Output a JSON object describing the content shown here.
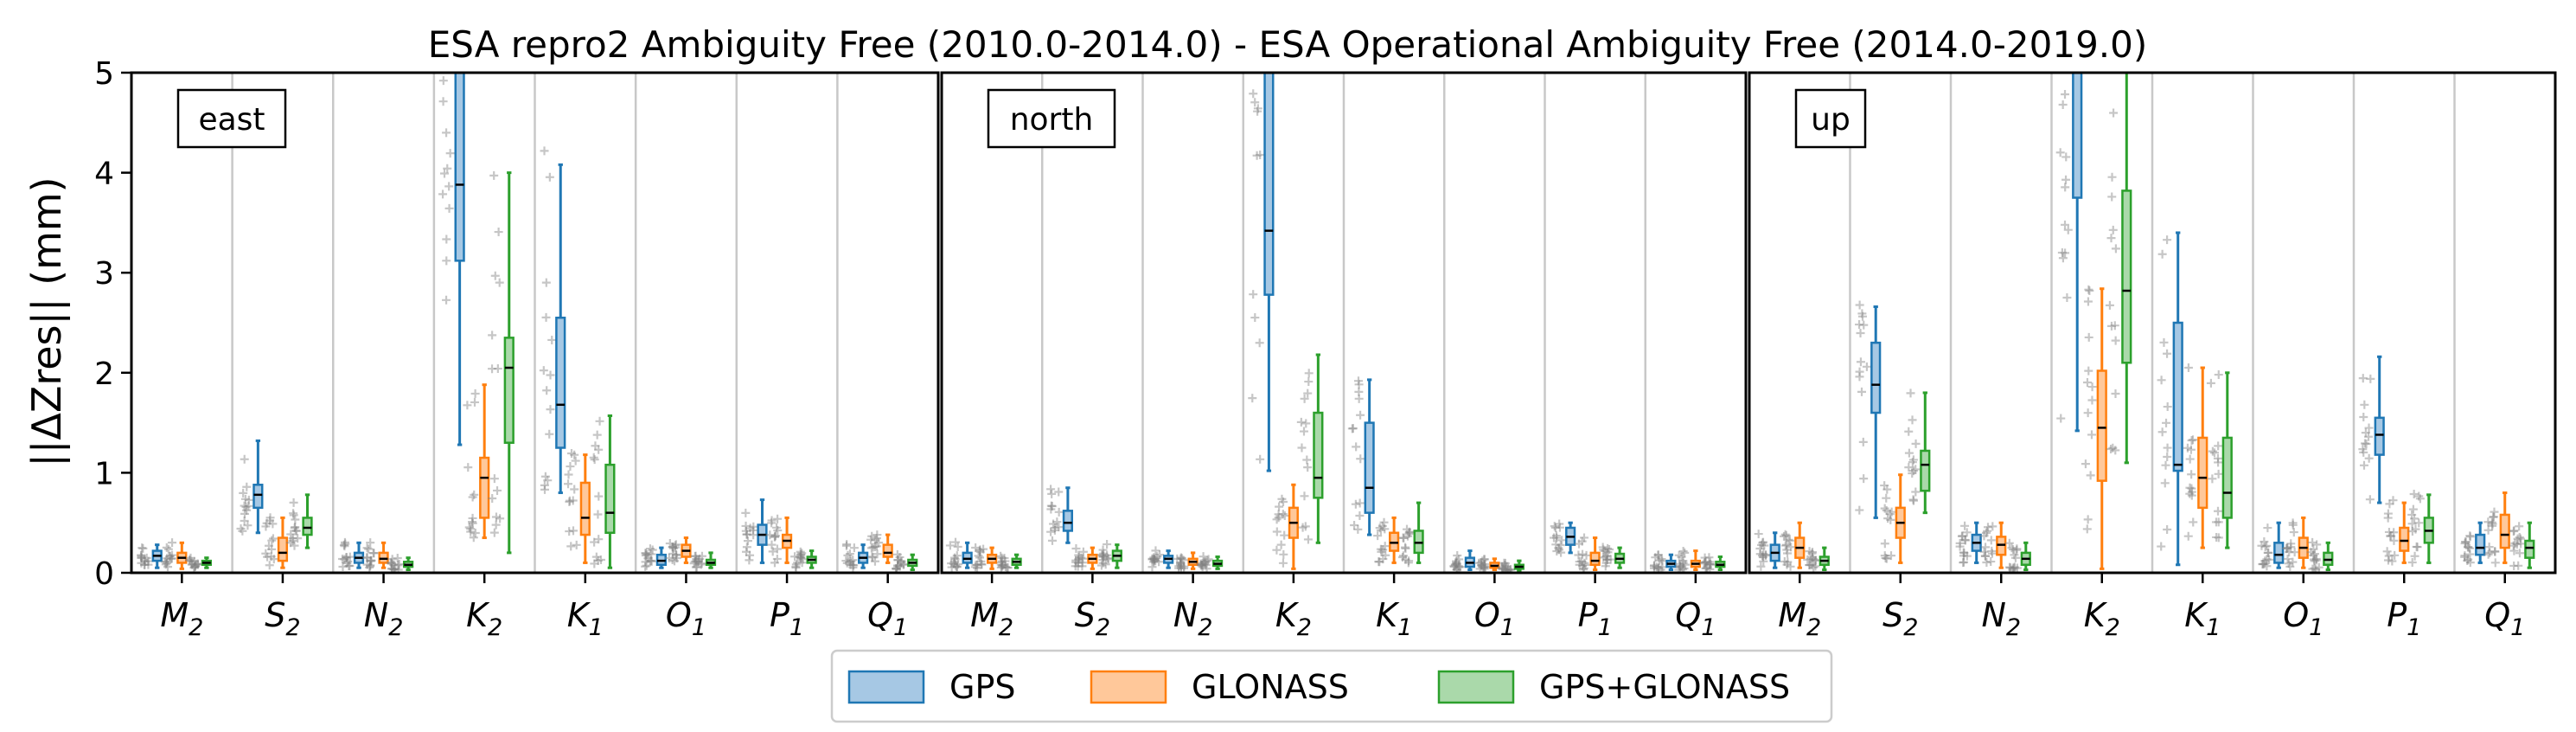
{
  "chart_data": {
    "type": "box",
    "title": "ESA repro2 Ambiguity Free (2010.0-2014.0) - ESA Operational Ambiguity Free (2014.0-2019.0)",
    "ylabel": "||ΔZres|| (mm)",
    "ylim": [
      0,
      5
    ],
    "yticks": [
      "0",
      "1",
      "2",
      "3",
      "4",
      "5"
    ],
    "grid": "vertical gridlines between tidal constituents",
    "legend_placement": "bottom-center",
    "categories": [
      {
        "base": "M",
        "sub": "2"
      },
      {
        "base": "S",
        "sub": "2"
      },
      {
        "base": "N",
        "sub": "2"
      },
      {
        "base": "K",
        "sub": "2"
      },
      {
        "base": "K",
        "sub": "1"
      },
      {
        "base": "O",
        "sub": "1"
      },
      {
        "base": "P",
        "sub": "1"
      },
      {
        "base": "Q",
        "sub": "1"
      }
    ],
    "series": [
      {
        "name": "GPS",
        "color": "#1f77b4",
        "fill": "#a6c8e4"
      },
      {
        "name": "GLONASS",
        "color": "#ff7f0e",
        "fill": "#ffc89a"
      },
      {
        "name": "GPS+GLONASS",
        "color": "#2ca02c",
        "fill": "#aad9aa"
      }
    ],
    "scatter_color": "#808080",
    "panels": [
      {
        "label": "east",
        "boxes": [
          [
            [
              0.05,
              0.12,
              0.17,
              0.22,
              0.28
            ],
            [
              0.04,
              0.1,
              0.15,
              0.2,
              0.3
            ],
            [
              0.05,
              0.08,
              0.1,
              0.12,
              0.15
            ]
          ],
          [
            [
              0.4,
              0.65,
              0.78,
              0.88,
              1.32
            ],
            [
              0.05,
              0.12,
              0.2,
              0.35,
              0.55
            ],
            [
              0.25,
              0.38,
              0.45,
              0.55,
              0.78
            ]
          ],
          [
            [
              0.05,
              0.1,
              0.15,
              0.2,
              0.3
            ],
            [
              0.05,
              0.1,
              0.14,
              0.2,
              0.3
            ],
            [
              0.03,
              0.06,
              0.08,
              0.11,
              0.15
            ]
          ],
          [
            [
              1.28,
              3.12,
              3.88,
              5.2,
              5.2
            ],
            [
              0.35,
              0.55,
              0.95,
              1.15,
              1.88
            ],
            [
              0.2,
              1.3,
              2.05,
              2.35,
              4.0
            ]
          ],
          [
            [
              0.8,
              1.25,
              1.68,
              2.55,
              4.08
            ],
            [
              0.1,
              0.38,
              0.55,
              0.9,
              1.18
            ],
            [
              0.05,
              0.4,
              0.6,
              1.08,
              1.57
            ]
          ],
          [
            [
              0.05,
              0.08,
              0.12,
              0.18,
              0.25
            ],
            [
              0.1,
              0.16,
              0.22,
              0.28,
              0.35
            ],
            [
              0.05,
              0.08,
              0.1,
              0.13,
              0.2
            ]
          ],
          [
            [
              0.1,
              0.28,
              0.38,
              0.48,
              0.73
            ],
            [
              0.1,
              0.25,
              0.32,
              0.38,
              0.55
            ],
            [
              0.05,
              0.1,
              0.13,
              0.16,
              0.22
            ]
          ],
          [
            [
              0.05,
              0.1,
              0.15,
              0.2,
              0.28
            ],
            [
              0.1,
              0.16,
              0.2,
              0.28,
              0.38
            ],
            [
              0.03,
              0.07,
              0.1,
              0.13,
              0.18
            ]
          ]
        ]
      },
      {
        "label": "north",
        "boxes": [
          [
            [
              0.05,
              0.1,
              0.14,
              0.2,
              0.3
            ],
            [
              0.04,
              0.1,
              0.14,
              0.18,
              0.25
            ],
            [
              0.05,
              0.08,
              0.11,
              0.14,
              0.18
            ]
          ],
          [
            [
              0.3,
              0.42,
              0.5,
              0.62,
              0.85
            ],
            [
              0.04,
              0.1,
              0.14,
              0.18,
              0.25
            ],
            [
              0.05,
              0.12,
              0.17,
              0.22,
              0.28
            ]
          ],
          [
            [
              0.05,
              0.1,
              0.14,
              0.17,
              0.22
            ],
            [
              0.04,
              0.08,
              0.11,
              0.14,
              0.2
            ],
            [
              0.04,
              0.07,
              0.09,
              0.12,
              0.16
            ]
          ],
          [
            [
              1.02,
              2.78,
              3.42,
              5.2,
              5.2
            ],
            [
              0.04,
              0.35,
              0.5,
              0.65,
              0.88
            ],
            [
              0.3,
              0.75,
              0.95,
              1.6,
              2.18
            ]
          ],
          [
            [
              0.38,
              0.6,
              0.85,
              1.5,
              1.93
            ],
            [
              0.1,
              0.22,
              0.3,
              0.4,
              0.55
            ],
            [
              0.1,
              0.2,
              0.3,
              0.42,
              0.7
            ]
          ],
          [
            [
              0.03,
              0.06,
              0.1,
              0.15,
              0.22
            ],
            [
              0.03,
              0.05,
              0.07,
              0.1,
              0.14
            ],
            [
              0.02,
              0.04,
              0.06,
              0.08,
              0.12
            ]
          ],
          [
            [
              0.2,
              0.28,
              0.36,
              0.45,
              0.5
            ],
            [
              0.03,
              0.08,
              0.12,
              0.2,
              0.35
            ],
            [
              0.05,
              0.1,
              0.14,
              0.19,
              0.25
            ]
          ],
          [
            [
              0.03,
              0.06,
              0.09,
              0.12,
              0.18
            ],
            [
              0.03,
              0.06,
              0.09,
              0.12,
              0.22
            ],
            [
              0.03,
              0.06,
              0.08,
              0.11,
              0.16
            ]
          ]
        ]
      },
      {
        "label": "up",
        "boxes": [
          [
            [
              0.05,
              0.12,
              0.2,
              0.28,
              0.4
            ],
            [
              0.05,
              0.15,
              0.25,
              0.35,
              0.5
            ],
            [
              0.03,
              0.08,
              0.12,
              0.16,
              0.25
            ]
          ],
          [
            [
              0.55,
              1.6,
              1.88,
              2.3,
              2.66
            ],
            [
              0.1,
              0.35,
              0.5,
              0.65,
              0.98
            ],
            [
              0.6,
              0.82,
              1.08,
              1.22,
              1.8
            ]
          ],
          [
            [
              0.1,
              0.22,
              0.3,
              0.38,
              0.5
            ],
            [
              0.05,
              0.18,
              0.28,
              0.36,
              0.5
            ],
            [
              0.03,
              0.08,
              0.14,
              0.2,
              0.3
            ]
          ],
          [
            [
              1.42,
              3.75,
              5.2,
              5.2,
              5.2
            ],
            [
              0.04,
              0.92,
              1.45,
              2.02,
              2.84
            ],
            [
              1.1,
              2.1,
              2.82,
              3.82,
              5.2
            ]
          ],
          [
            [
              0.08,
              1.02,
              1.08,
              2.5,
              3.4
            ],
            [
              0.25,
              0.65,
              0.95,
              1.35,
              2.05
            ],
            [
              0.25,
              0.55,
              0.8,
              1.35,
              2.0
            ]
          ],
          [
            [
              0.05,
              0.1,
              0.18,
              0.3,
              0.5
            ],
            [
              0.05,
              0.15,
              0.25,
              0.35,
              0.55
            ],
            [
              0.03,
              0.08,
              0.13,
              0.2,
              0.3
            ]
          ],
          [
            [
              0.7,
              1.18,
              1.38,
              1.55,
              2.16
            ],
            [
              0.1,
              0.22,
              0.32,
              0.45,
              0.7
            ],
            [
              0.1,
              0.3,
              0.42,
              0.55,
              0.78
            ]
          ],
          [
            [
              0.1,
              0.18,
              0.25,
              0.38,
              0.5
            ],
            [
              0.1,
              0.25,
              0.38,
              0.58,
              0.8
            ],
            [
              0.05,
              0.15,
              0.25,
              0.32,
              0.5
            ]
          ]
        ]
      }
    ]
  }
}
